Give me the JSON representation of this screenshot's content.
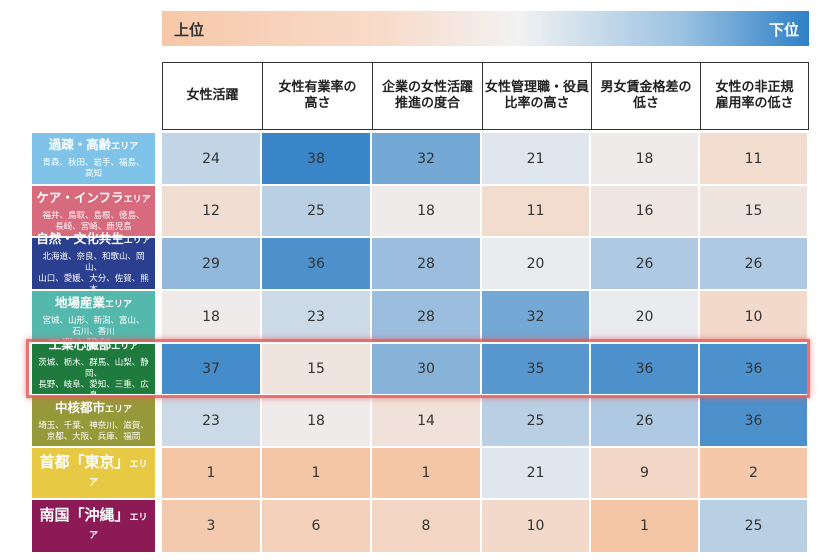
{
  "legend": {
    "top_label": "上位",
    "bottom_label": "下位"
  },
  "chart_data": {
    "type": "heatmap",
    "columns": [
      "女性活躍",
      "女性有業率の\n高さ",
      "企業の女性活躍\n推進の度合",
      "女性管理職・役員\n比率の高さ",
      "男女賃金格差の\n低さ",
      "女性の非正規\n雇用率の低さ"
    ],
    "rows": [
      {
        "name": "過疎・高齢",
        "suffix": "エリア",
        "prefectures": "青森、秋田、岩手、福島、\n高知",
        "color": "#7fc4e8",
        "values": [
          24,
          38,
          32,
          21,
          18,
          11
        ]
      },
      {
        "name": "ケア・インフラ",
        "suffix": "エリア",
        "prefectures": "福井、鳥取、島根、徳島、\n長崎、宮崎、鹿児島",
        "color": "#d76a7d",
        "values": [
          12,
          25,
          18,
          11,
          16,
          15
        ]
      },
      {
        "name": "自然・文化共生",
        "suffix": "エリア",
        "prefectures": "北海道、奈良、和歌山、岡山、\n山口、愛媛、大分、佐賀、熊本",
        "color": "#2a3f8e",
        "values": [
          29,
          36,
          28,
          20,
          26,
          26
        ]
      },
      {
        "name": "地場産業",
        "suffix": "エリア",
        "prefectures": "宮城、山形、新潟、富山、\n石川、香川",
        "color": "#55b8ac",
        "values": [
          18,
          23,
          28,
          32,
          20,
          10
        ]
      },
      {
        "name": "工業心臓部",
        "suffix": "エリア",
        "prefectures": "茨城、栃木、群馬、山梨、静岡、\n長野、岐阜、愛知、三重、広島",
        "color": "#1f7a3d",
        "values": [
          37,
          15,
          30,
          35,
          36,
          36
        ]
      },
      {
        "name": "中核都市",
        "suffix": "エリア",
        "prefectures": "埼玉、千葉、神奈川、滋賀、\n京都、大阪、兵庫、福岡",
        "color": "#96993a",
        "values": [
          23,
          18,
          14,
          25,
          26,
          36
        ]
      },
      {
        "name": "首都「東京」",
        "suffix": "エリア",
        "prefectures": "",
        "color": "#e8c944",
        "values": [
          1,
          1,
          1,
          21,
          9,
          2
        ]
      },
      {
        "name": "南国「沖縄」",
        "suffix": "エリア",
        "prefectures": "",
        "color": "#8b1a55",
        "values": [
          3,
          6,
          8,
          10,
          1,
          25
        ]
      }
    ],
    "highlighted_row": "工業心臓部",
    "value_range": [
      1,
      38
    ],
    "scale": "1 = 上位 (orange), 38 = 下位 (blue)"
  },
  "colors": {
    "high_rank": "#f5c6a6",
    "middle": "#eeeeee",
    "low_rank": "#3a86c8",
    "highlight_border": "#e85a5a"
  }
}
